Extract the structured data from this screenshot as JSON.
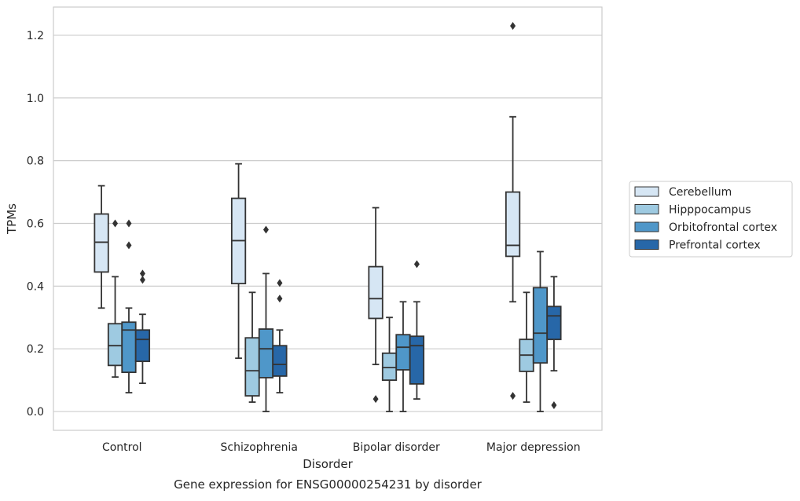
{
  "chart_data": {
    "type": "box",
    "caption": "Gene expression for ENSG00000254231 by disorder",
    "xlabel": "Disorder",
    "ylabel": "TPMs",
    "ylim": [
      -0.06,
      1.29
    ],
    "yticks": [
      0.0,
      0.2,
      0.4,
      0.6,
      0.8,
      1.0,
      1.2
    ],
    "ytick_labels": [
      "0.0",
      "0.2",
      "0.4",
      "0.6",
      "0.8",
      "1.0",
      "1.2"
    ],
    "grid": "horizontal",
    "legend_position": "right",
    "categories": [
      "Control",
      "Schizophrenia",
      "Bipolar disorder",
      "Major depression"
    ],
    "series": [
      {
        "name": "Cerebellum",
        "color": "#d6e6f4",
        "boxes": [
          {
            "whislo": 0.33,
            "q1": 0.445,
            "med": 0.54,
            "q3": 0.63,
            "whishi": 0.72,
            "fliers": []
          },
          {
            "whislo": 0.17,
            "q1": 0.408,
            "med": 0.545,
            "q3": 0.68,
            "whishi": 0.79,
            "fliers": []
          },
          {
            "whislo": 0.15,
            "q1": 0.297,
            "med": 0.36,
            "q3": 0.462,
            "whishi": 0.65,
            "fliers": [
              0.04
            ]
          },
          {
            "whislo": 0.35,
            "q1": 0.495,
            "med": 0.53,
            "q3": 0.7,
            "whishi": 0.94,
            "fliers": [
              0.05,
              1.23
            ]
          }
        ]
      },
      {
        "name": "Hipppocampus",
        "color": "#9ecae1",
        "boxes": [
          {
            "whislo": 0.11,
            "q1": 0.147,
            "med": 0.21,
            "q3": 0.28,
            "whishi": 0.43,
            "fliers": [
              0.6
            ]
          },
          {
            "whislo": 0.03,
            "q1": 0.05,
            "med": 0.13,
            "q3": 0.235,
            "whishi": 0.38,
            "fliers": []
          },
          {
            "whislo": 0.0,
            "q1": 0.1,
            "med": 0.14,
            "q3": 0.186,
            "whishi": 0.3,
            "fliers": []
          },
          {
            "whislo": 0.03,
            "q1": 0.128,
            "med": 0.18,
            "q3": 0.23,
            "whishi": 0.38,
            "fliers": []
          }
        ]
      },
      {
        "name": "Orbitofrontal cortex",
        "color": "#4f97c9",
        "boxes": [
          {
            "whislo": 0.06,
            "q1": 0.125,
            "med": 0.26,
            "q3": 0.285,
            "whishi": 0.33,
            "fliers": [
              0.53,
              0.6
            ]
          },
          {
            "whislo": 0.0,
            "q1": 0.108,
            "med": 0.2,
            "q3": 0.263,
            "whishi": 0.44,
            "fliers": [
              0.58
            ]
          },
          {
            "whislo": 0.0,
            "q1": 0.133,
            "med": 0.205,
            "q3": 0.245,
            "whishi": 0.35,
            "fliers": []
          },
          {
            "whislo": 0.0,
            "q1": 0.155,
            "med": 0.25,
            "q3": 0.395,
            "whishi": 0.51,
            "fliers": []
          }
        ]
      },
      {
        "name": "Prefrontal cortex",
        "color": "#2767a8",
        "boxes": [
          {
            "whislo": 0.09,
            "q1": 0.16,
            "med": 0.23,
            "q3": 0.26,
            "whishi": 0.31,
            "fliers": [
              0.42,
              0.44
            ]
          },
          {
            "whislo": 0.06,
            "q1": 0.113,
            "med": 0.15,
            "q3": 0.21,
            "whishi": 0.26,
            "fliers": [
              0.36,
              0.41
            ]
          },
          {
            "whislo": 0.04,
            "q1": 0.088,
            "med": 0.21,
            "q3": 0.24,
            "whishi": 0.35,
            "fliers": [
              0.47
            ]
          },
          {
            "whislo": 0.13,
            "q1": 0.23,
            "med": 0.305,
            "q3": 0.335,
            "whishi": 0.43,
            "fliers": [
              0.02
            ]
          }
        ]
      }
    ]
  }
}
